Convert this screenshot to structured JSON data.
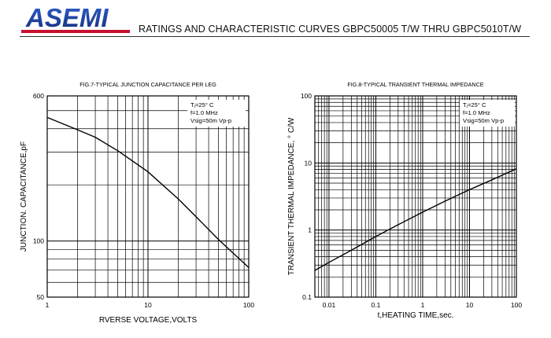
{
  "header": {
    "brand": "ASEMI",
    "title": "RATINGS AND CHARACTERISTIC CURVES GBPC50005 T/W THRU GBPC5010T/W",
    "brand_color": "#1d3f9a"
  },
  "chart_data": [
    {
      "type": "line",
      "title": "FIG.7-TYPICAL JUNCTION CAPACITANCE PER LEG",
      "xlabel": "RVERSE VOLTAGE,VOLTS",
      "ylabel": "JUNCTION. CAPACITANCE,pF",
      "xscale": "log",
      "yscale": "log",
      "xlim": [
        1,
        100
      ],
      "ylim": [
        50,
        600
      ],
      "x_ticks": [
        "1",
        "10",
        "100"
      ],
      "y_ticks": [
        "600",
        "100",
        "50"
      ],
      "grid": true,
      "conditions": [
        "Tⱼ=25° C",
        "f=1.0 MHz",
        "Vsig=50m Vp-p"
      ],
      "series": [
        {
          "x": [
            1,
            2,
            3,
            5,
            10,
            20,
            30,
            50,
            100
          ],
          "y": [
            460,
            395,
            360,
            305,
            235,
            168,
            135,
            102,
            72
          ]
        }
      ]
    },
    {
      "type": "line",
      "title": "FIG.8-TYPICAL TRANSIENT THERMAL IMPEDANCE",
      "xlabel": "t,HEATING TIME,sec.",
      "ylabel": "TRANSIENT THERMAL IMPEDANCE, ° C/W",
      "xscale": "log",
      "yscale": "log",
      "xlim": [
        0.005,
        100
      ],
      "ylim": [
        0.1,
        100
      ],
      "x_ticks": [
        "0.01",
        "0.1",
        "1",
        "10",
        "100"
      ],
      "y_ticks": [
        "100",
        "10",
        "1",
        "0.1"
      ],
      "grid": true,
      "conditions": [
        "Tⱼ=25° C",
        "f=1.0 MHz",
        "Vsig=50m Vp-p"
      ],
      "series": [
        {
          "x": [
            0.005,
            0.01,
            0.03,
            0.1,
            0.3,
            1,
            3,
            10,
            30,
            100
          ],
          "y": [
            0.25,
            0.33,
            0.5,
            0.8,
            1.2,
            1.85,
            2.7,
            4.0,
            5.6,
            8.2
          ]
        }
      ]
    }
  ]
}
